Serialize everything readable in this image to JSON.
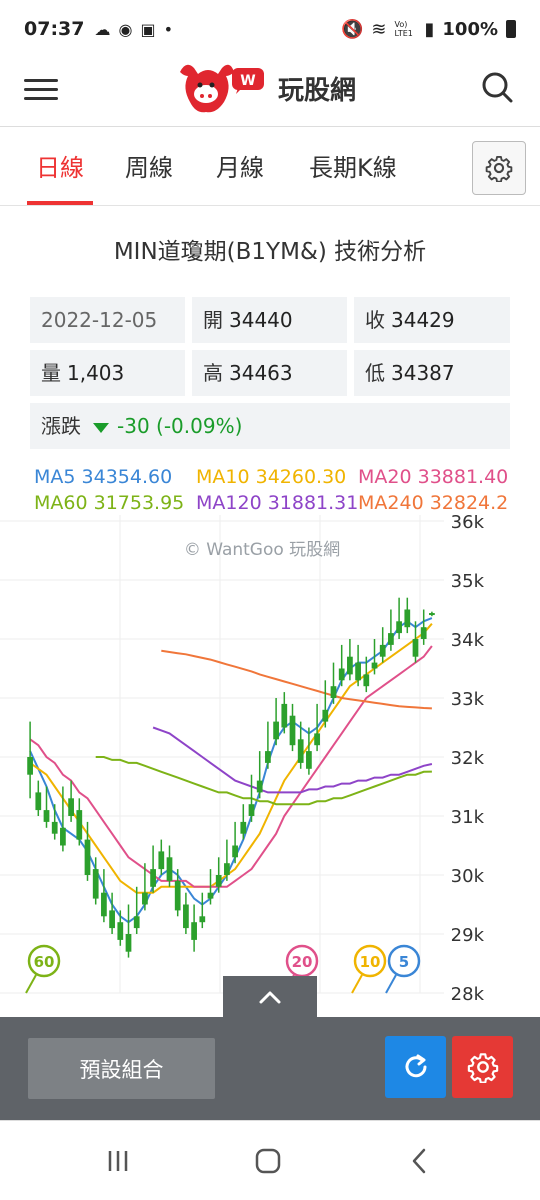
{
  "status": {
    "time": "07:37",
    "battery": "100%",
    "network": "Vo) LTE1"
  },
  "header": {
    "brand": "玩股網",
    "menu_icon": "hamburger-menu-icon",
    "search_icon": "search-icon"
  },
  "tabs": [
    {
      "label": "日線",
      "active": true
    },
    {
      "label": "周線",
      "active": false
    },
    {
      "label": "月線",
      "active": false
    },
    {
      "label": "長期K線",
      "active": false
    }
  ],
  "page_title": "MIN道瓊期(B1YM&) 技術分析",
  "quote": {
    "date": "2022-12-05",
    "open_label": "開",
    "open": "34440",
    "close_label": "收",
    "close": "34429",
    "volume_label": "量",
    "volume": "1,403",
    "high_label": "高",
    "high": "34463",
    "low_label": "低",
    "low": "34387",
    "change_label": "漲跌",
    "change": "-30 (-0.09%)"
  },
  "ma_legend": [
    {
      "label": "MA5 34354.60",
      "color": "#3a86d6"
    },
    {
      "label": "MA10 34260.30",
      "color": "#f0b400"
    },
    {
      "label": "MA20 33881.40",
      "color": "#e0508a"
    },
    {
      "label": "MA60 31753.95",
      "color": "#7db317"
    },
    {
      "label": "MA120 31881.31",
      "color": "#8e44c8"
    },
    {
      "label": "MA240 32824.2",
      "color": "#f0763a"
    }
  ],
  "watermark": "© WantGoo 玩股網",
  "ma_badges": [
    {
      "label": "60",
      "color": "#7db317"
    },
    {
      "label": "20",
      "color": "#e0508a"
    },
    {
      "label": "10",
      "color": "#f0b400"
    },
    {
      "label": "5",
      "color": "#3a86d6"
    }
  ],
  "chart_data": {
    "type": "candlestick",
    "y_ticks": [
      "36k",
      "35k",
      "34k",
      "33k",
      "32k",
      "31k",
      "30k",
      "29k",
      "28k"
    ],
    "ylim": [
      28000,
      36000
    ],
    "candles": [
      [
        32000,
        32600,
        31700,
        31300
      ],
      [
        31400,
        31600,
        31100,
        31000
      ],
      [
        31100,
        31500,
        30900,
        30800
      ],
      [
        30900,
        31200,
        30700,
        30600
      ],
      [
        30800,
        31500,
        30500,
        30400
      ],
      [
        31300,
        31600,
        31000,
        30900
      ],
      [
        31100,
        31300,
        30600,
        30500
      ],
      [
        30600,
        30900,
        30000,
        29900
      ],
      [
        30100,
        30300,
        29600,
        29500
      ],
      [
        29700,
        30100,
        29300,
        29200
      ],
      [
        29400,
        29700,
        29100,
        29000
      ],
      [
        29200,
        29400,
        28900,
        28800
      ],
      [
        29000,
        29500,
        28700,
        28600
      ],
      [
        29300,
        29800,
        29100,
        29000
      ],
      [
        29700,
        30200,
        29500,
        29400
      ],
      [
        30100,
        30500,
        29800,
        29700
      ],
      [
        30400,
        30600,
        30100,
        30000
      ],
      [
        30300,
        30500,
        29900,
        29800
      ],
      [
        29900,
        30100,
        29400,
        29300
      ],
      [
        29500,
        29700,
        29100,
        29000
      ],
      [
        29200,
        29500,
        28900,
        28700
      ],
      [
        29300,
        29700,
        29200,
        29100
      ],
      [
        29700,
        30100,
        29600,
        29500
      ],
      [
        30000,
        30300,
        29800,
        29700
      ],
      [
        30200,
        30600,
        30000,
        29900
      ],
      [
        30500,
        30900,
        30300,
        30200
      ],
      [
        30900,
        31200,
        30700,
        30600
      ],
      [
        31200,
        31700,
        31000,
        30900
      ],
      [
        31600,
        32100,
        31400,
        31300
      ],
      [
        32100,
        32600,
        31900,
        31800
      ],
      [
        32600,
        33000,
        32300,
        32200
      ],
      [
        32900,
        33100,
        32500,
        32400
      ],
      [
        32700,
        32900,
        32200,
        32100
      ],
      [
        32300,
        32600,
        31900,
        31800
      ],
      [
        32100,
        32500,
        31800,
        31700
      ],
      [
        32400,
        32900,
        32200,
        32100
      ],
      [
        32800,
        33300,
        32600,
        32500
      ],
      [
        33200,
        33600,
        33000,
        32900
      ],
      [
        33500,
        33900,
        33300,
        33200
      ],
      [
        33700,
        34000,
        33400,
        33300
      ],
      [
        33600,
        33900,
        33300,
        33200
      ],
      [
        33400,
        33700,
        33200,
        33100
      ],
      [
        33600,
        34000,
        33500,
        33400
      ],
      [
        33900,
        34200,
        33700,
        33600
      ],
      [
        34100,
        34500,
        33900,
        33800
      ],
      [
        34300,
        34700,
        34100,
        34000
      ],
      [
        34500,
        34700,
        34200,
        34100
      ],
      [
        34000,
        34300,
        33700,
        33600
      ],
      [
        34200,
        34500,
        34000,
        33900
      ],
      [
        34440,
        34463,
        34429,
        34387
      ]
    ],
    "ma_series": {
      "MA5": [
        32100,
        31800,
        31500,
        31100,
        30800,
        30700,
        30600,
        30400,
        30100,
        29800,
        29500,
        29300,
        29200,
        29300,
        29500,
        29800,
        30000,
        30100,
        30000,
        29800,
        29600,
        29500,
        29600,
        29800,
        30000,
        30300,
        30600,
        31000,
        31400,
        31900,
        32300,
        32500,
        32600,
        32500,
        32400,
        32500,
        32700,
        33000,
        33300,
        33500,
        33600,
        33600,
        33700,
        33800,
        34000,
        34200,
        34300,
        34200,
        34300,
        34354
      ],
      "MA10": [
        31900,
        31800,
        31700,
        31500,
        31300,
        31100,
        30900,
        30700,
        30500,
        30300,
        30100,
        29900,
        29800,
        29700,
        29700,
        29700,
        29800,
        29800,
        29800,
        29800,
        29800,
        29800,
        29800,
        29900,
        30000,
        30100,
        30300,
        30500,
        30700,
        31000,
        31300,
        31600,
        31800,
        32000,
        32200,
        32400,
        32600,
        32800,
        33000,
        33200,
        33300,
        33400,
        33500,
        33600,
        33700,
        33800,
        33900,
        34000,
        34100,
        34260
      ],
      "MA20": [
        32300,
        32200,
        32000,
        31900,
        31700,
        31600,
        31400,
        31300,
        31100,
        30900,
        30700,
        30500,
        30300,
        30200,
        30100,
        30000,
        29900,
        29900,
        29900,
        29900,
        29800,
        29800,
        29800,
        29800,
        29800,
        29900,
        30000,
        30100,
        30300,
        30500,
        30700,
        31000,
        31200,
        31400,
        31600,
        31800,
        32000,
        32200,
        32400,
        32600,
        32800,
        33000,
        33100,
        33200,
        33300,
        33400,
        33500,
        33600,
        33700,
        33881
      ],
      "MA60": [
        32000,
        32000,
        31950,
        31950,
        31900,
        31900,
        31850,
        31800,
        31750,
        31700,
        31650,
        31600,
        31550,
        31500,
        31450,
        31400,
        31400,
        31350,
        31300,
        31300,
        31250,
        31250,
        31200,
        31200,
        31200,
        31200,
        31200,
        31250,
        31250,
        31300,
        31300,
        31350,
        31400,
        31450,
        31500,
        31550,
        31600,
        31650,
        31700,
        31700,
        31750,
        31753
      ],
      "MA120": [
        32500,
        32450,
        32400,
        32300,
        32200,
        32100,
        32000,
        31900,
        31800,
        31700,
        31600,
        31550,
        31500,
        31450,
        31400,
        31400,
        31400,
        31400,
        31400,
        31450,
        31450,
        31500,
        31500,
        31550,
        31550,
        31600,
        31600,
        31650,
        31650,
        31700,
        31700,
        31750,
        31800,
        31850,
        31881
      ],
      "MA240": [
        33800,
        33780,
        33760,
        33740,
        33710,
        33680,
        33650,
        33610,
        33570,
        33530,
        33490,
        33450,
        33400,
        33360,
        33320,
        33280,
        33240,
        33200,
        33160,
        33120,
        33080,
        33040,
        33000,
        32980,
        32960,
        32940,
        32920,
        32900,
        32880,
        32860,
        32850,
        32840,
        32830,
        32824
      ]
    }
  },
  "bottom": {
    "preset_label": "預設組合",
    "refresh_icon": "refresh-icon",
    "settings_icon": "gear-icon",
    "toggle_icon": "chevron-up-icon"
  },
  "nav": {
    "recents_icon": "recents-icon",
    "home_icon": "home-icon",
    "back_icon": "back-icon"
  }
}
